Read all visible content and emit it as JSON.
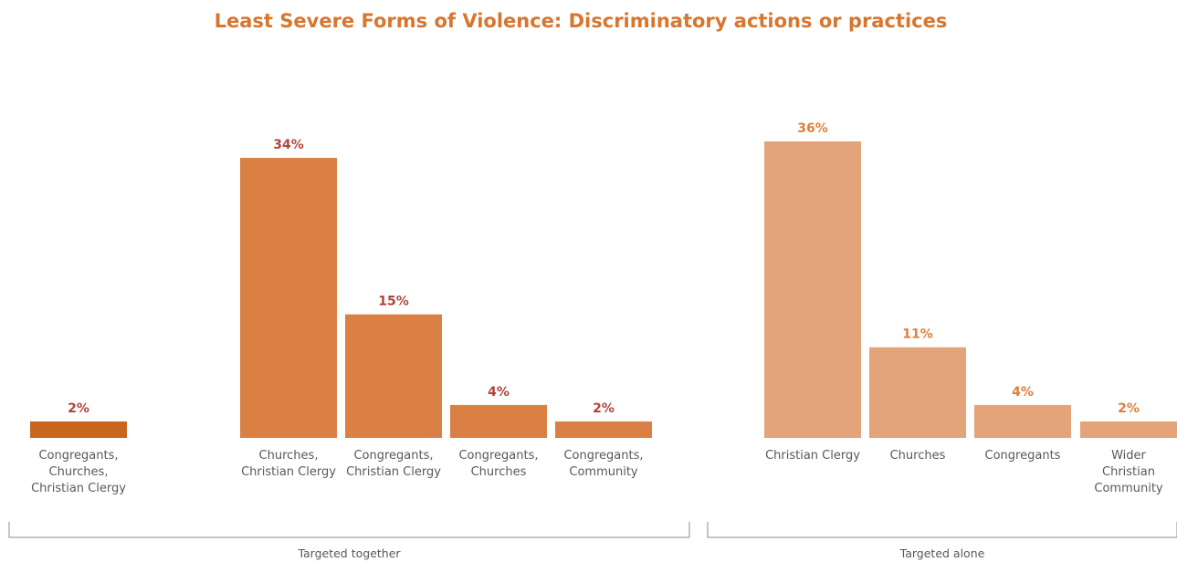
{
  "chart_data": {
    "type": "bar",
    "title": "Least Severe Forms of Violence: Discriminatory actions or practices",
    "groups": [
      {
        "name": "Targeted together",
        "categories": [
          [
            "Congregants,",
            "Churches,",
            "Christian Clergy"
          ],
          [
            "Churches,",
            "Christian Clergy"
          ],
          [
            "Congregants,",
            "Christian Clergy"
          ],
          [
            "Congregants,",
            "Churches"
          ],
          [
            "Congregants,",
            "Community"
          ]
        ],
        "values": [
          2,
          34,
          15,
          4,
          2
        ],
        "labels": [
          "2%",
          "34%",
          "15%",
          "4%",
          "2%"
        ]
      },
      {
        "name": "Targeted alone",
        "categories": [
          [
            "Christian Clergy"
          ],
          [
            "Churches"
          ],
          [
            "Congregants"
          ],
          [
            "Wider",
            "Christian",
            "Community"
          ]
        ],
        "values": [
          36,
          11,
          4,
          2
        ],
        "labels": [
          "36%",
          "11%",
          "4%",
          "2%"
        ]
      }
    ],
    "unit": "%",
    "ylim": [
      0,
      36
    ],
    "grid": false,
    "legend": "none",
    "colors": {
      "title": "#D7762F",
      "bar_first": "#C8661E",
      "bar_together": "#DB8045",
      "bar_alone": "#E3A479",
      "label_together": "#B0443A",
      "label_alone": "#E07E3A",
      "axis_text": "#595959",
      "bracket": "#8C8C8C"
    }
  }
}
